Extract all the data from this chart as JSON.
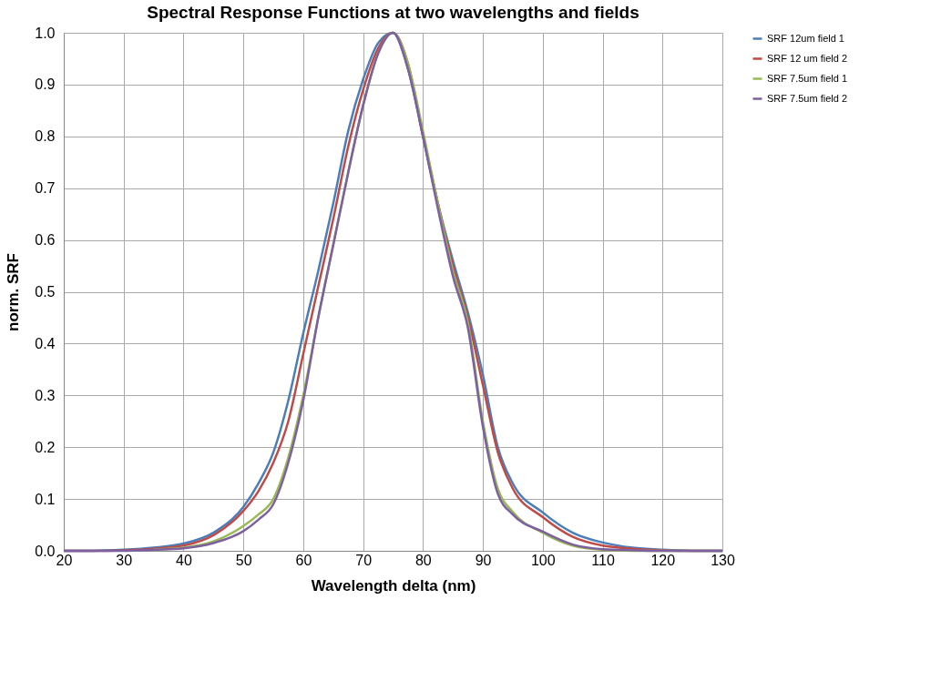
{
  "chart_data": {
    "type": "line",
    "title": "Spectral Response Functions at two wavelengths and fields",
    "xlabel": "Wavelength delta (nm)",
    "ylabel": "norm. SRF",
    "x": [
      20,
      25,
      30,
      35,
      40,
      45,
      50,
      52.5,
      55,
      57.5,
      60,
      62.5,
      65,
      67.5,
      70,
      72.5,
      75,
      77.5,
      80,
      82.5,
      85,
      87.5,
      90,
      92.5,
      95,
      100,
      105,
      110,
      115,
      120,
      125,
      130
    ],
    "series": [
      {
        "name": "SRF 12um field 1",
        "color": "#4a7ebb",
        "values": [
          0,
          0,
          0.002,
          0.006,
          0.014,
          0.035,
          0.085,
          0.13,
          0.19,
          0.29,
          0.42,
          0.54,
          0.67,
          0.81,
          0.91,
          0.98,
          1.0,
          0.93,
          0.8,
          0.67,
          0.56,
          0.46,
          0.34,
          0.2,
          0.13,
          0.074,
          0.035,
          0.016,
          0.006,
          0.002,
          0,
          0
        ]
      },
      {
        "name": "SRF 12 um field 2",
        "color": "#be4b48",
        "values": [
          0,
          0,
          0.001,
          0.004,
          0.01,
          0.03,
          0.077,
          0.115,
          0.17,
          0.25,
          0.38,
          0.51,
          0.64,
          0.78,
          0.89,
          0.97,
          1.0,
          0.94,
          0.8,
          0.67,
          0.55,
          0.45,
          0.32,
          0.19,
          0.12,
          0.065,
          0.027,
          0.01,
          0.004,
          0.001,
          0,
          0
        ]
      },
      {
        "name": "SRF 7.5um field 1",
        "color": "#98b954",
        "values": [
          null,
          null,
          null,
          0.002,
          0.006,
          0.018,
          0.048,
          0.07,
          0.1,
          0.18,
          0.3,
          0.45,
          0.59,
          0.73,
          0.86,
          0.96,
          1.0,
          0.94,
          0.81,
          0.67,
          0.54,
          0.44,
          0.25,
          0.12,
          0.075,
          0.035,
          0.01,
          0.002,
          0,
          0,
          0,
          0
        ]
      },
      {
        "name": "SRF 7.5um field 2",
        "color": "#7d60a0",
        "values": [
          0,
          0,
          0,
          0.002,
          0.005,
          0.015,
          0.038,
          0.06,
          0.09,
          0.17,
          0.29,
          0.45,
          0.59,
          0.73,
          0.86,
          0.96,
          1.0,
          0.93,
          0.8,
          0.66,
          0.53,
          0.43,
          0.24,
          0.11,
          0.07,
          0.037,
          0.012,
          0.003,
          0.001,
          0,
          0,
          0
        ]
      }
    ],
    "xlim": [
      20,
      130
    ],
    "xticks": [
      20,
      30,
      40,
      50,
      60,
      70,
      80,
      90,
      100,
      110,
      120,
      130
    ],
    "ylim": [
      0,
      1
    ],
    "yticks": [
      {
        "value": 0,
        "label": "0.0"
      },
      {
        "value": 0.1,
        "label": "0.1"
      },
      {
        "value": 0.2,
        "label": "0.2"
      },
      {
        "value": 0.3,
        "label": "0.3"
      },
      {
        "value": 0.4,
        "label": "0.4"
      },
      {
        "value": 0.5,
        "label": "0.5"
      },
      {
        "value": 0.6,
        "label": "0.6"
      },
      {
        "value": 0.7,
        "label": "0.7"
      },
      {
        "value": 0.8,
        "label": "0.8"
      },
      {
        "value": 0.9,
        "label": "0.9"
      },
      {
        "value": 1,
        "label": "1.0"
      }
    ],
    "grid": true,
    "legend": "right",
    "marker": "none",
    "line_style": "solid"
  }
}
